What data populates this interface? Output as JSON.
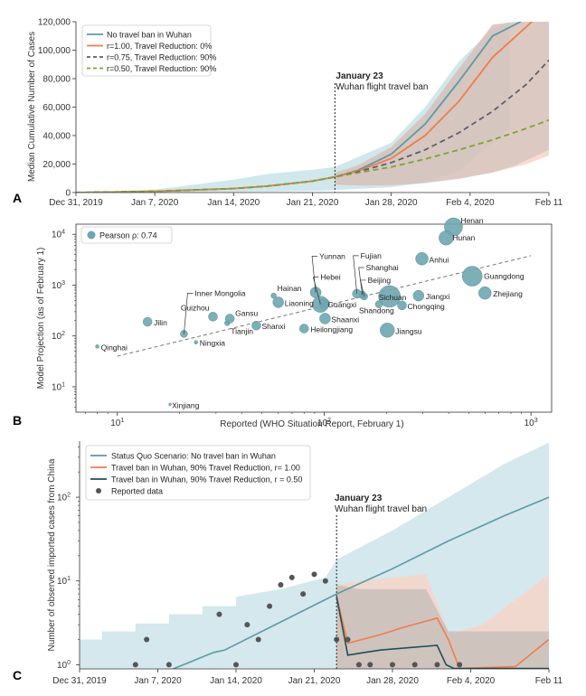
{
  "chart_data": [
    {
      "panel": "A",
      "type": "line",
      "ylabel": "Median Cumulative Number of Cases",
      "ylim": [
        0,
        120000
      ],
      "yticks": [
        0,
        20000,
        40000,
        60000,
        80000,
        100000,
        120000
      ],
      "ytick_labels": [
        "0",
        "20,000",
        "40,000",
        "60,000",
        "80,000",
        "100,000",
        "120,000"
      ],
      "x_day_range": [
        0,
        42
      ],
      "xticks": [
        0,
        7,
        14,
        21,
        28,
        35,
        42
      ],
      "xtick_labels": [
        "Dec 31, 2019",
        "Jan 7, 2020",
        "Jan 14, 2020",
        "Jan 21, 2020",
        "Jan 28, 2020",
        "Feb 4, 2020",
        "Feb 11"
      ],
      "annotation": {
        "day": 23,
        "line1": "January 23",
        "line2": "Wuhan flight travel ban"
      },
      "legend": [
        "No travel ban in Wuhan",
        "r=1.00, Travel Reduction: 0%",
        "r=0.75, Travel Reduction: 90%",
        "r=0.50, Travel Reduction: 90%"
      ],
      "series": [
        {
          "name": "No travel ban in Wuhan",
          "color": "#5b9aa5",
          "dash": "none",
          "x": [
            0,
            7,
            14,
            17,
            21,
            23,
            25,
            28,
            31,
            34,
            37,
            39.5
          ],
          "values": [
            0,
            800,
            2800,
            4500,
            8000,
            11000,
            15500,
            27000,
            48000,
            78000,
            110000,
            120000
          ]
        },
        {
          "name": "r=1.00, Travel Reduction: 0%",
          "color": "#ee7d4d",
          "dash": "none",
          "x": [
            0,
            7,
            14,
            17,
            21,
            23,
            25,
            28,
            31,
            34,
            37,
            40.5
          ],
          "values": [
            0,
            800,
            2800,
            4500,
            8000,
            11000,
            15000,
            24000,
            40000,
            64000,
            95000,
            120000
          ]
        },
        {
          "name": "r=0.75, Travel Reduction: 90%",
          "color": "#5e5e6e",
          "dash": "6,4",
          "x": [
            0,
            7,
            14,
            17,
            21,
            23,
            25,
            28,
            31,
            34,
            37,
            40,
            42
          ],
          "values": [
            0,
            800,
            2800,
            4500,
            8000,
            11000,
            14500,
            21000,
            30000,
            42000,
            57000,
            76000,
            93000
          ]
        },
        {
          "name": "r=0.50, Travel Reduction: 90%",
          "color": "#7aa632",
          "dash": "6,4",
          "x": [
            0,
            7,
            14,
            17,
            21,
            23,
            25,
            28,
            31,
            34,
            37,
            40,
            42
          ],
          "values": [
            0,
            800,
            2800,
            4500,
            8000,
            11000,
            13800,
            18000,
            23500,
            30000,
            37000,
            45000,
            51000
          ]
        }
      ],
      "bands": [
        {
          "color": "#a9d3dd",
          "x": [
            0,
            7,
            14,
            17,
            21,
            23,
            28,
            31,
            34,
            37,
            38.5
          ],
          "low": [
            0,
            100,
            400,
            700,
            1200,
            1800,
            3800,
            7000,
            15000,
            35000,
            45000
          ],
          "high": [
            0,
            2000,
            9000,
            13000,
            16000,
            18000,
            35000,
            60000,
            92000,
            115000,
            120000
          ]
        },
        {
          "color": "#f8c2ad",
          "x": [
            23,
            25,
            28,
            31,
            34,
            37,
            40,
            42
          ],
          "low": [
            5500,
            5000,
            5500,
            7000,
            10000,
            14000,
            20000,
            26000
          ],
          "high": [
            14000,
            19000,
            32000,
            55000,
            87000,
            118000,
            120000,
            120000
          ]
        },
        {
          "color": "#c8c0ba",
          "x": [
            23,
            25,
            28,
            31,
            34,
            37,
            39,
            42
          ],
          "low": [
            5500,
            5000,
            5000,
            6500,
            9500,
            14000,
            19000,
            30000
          ],
          "high": [
            14000,
            19000,
            32000,
            55000,
            87000,
            118000,
            120000,
            120000
          ]
        }
      ]
    },
    {
      "panel": "B",
      "type": "scatter",
      "xlabel": "Reported (WHO Situation Report, February 1)",
      "ylabel": "Model Projection (as of February 1)",
      "x_log_range": [
        0.8,
        3.1
      ],
      "y_log_range": [
        0.5,
        4.2
      ],
      "xtick_decades": [
        1,
        2,
        3
      ],
      "ytick_decades": [
        1,
        2,
        3,
        4
      ],
      "legend": "Pearson ρ: 0.74",
      "trend": {
        "x": [
          10,
          1000
        ],
        "y": [
          40,
          3800
        ]
      },
      "points": [
        {
          "label": "Henan",
          "x": 422,
          "y": 14000,
          "r": 10
        },
        {
          "label": "Hunan",
          "x": 389,
          "y": 8500,
          "r": 8
        },
        {
          "label": "Anhui",
          "x": 297,
          "y": 3300,
          "r": 7
        },
        {
          "label": "Guangdong",
          "x": 520,
          "y": 1500,
          "r": 11
        },
        {
          "label": "Zhejiang",
          "x": 599,
          "y": 700,
          "r": 7
        },
        {
          "label": "Jiangxi",
          "x": 286,
          "y": 620,
          "r": 6
        },
        {
          "label": "Sichuan",
          "x": 207,
          "y": 600,
          "r": 12
        },
        {
          "label": "Chongqing",
          "x": 238,
          "y": 400,
          "r": 5
        },
        {
          "label": "Shandong",
          "x": 184,
          "y": 420,
          "r": 4
        },
        {
          "label": "Jiangsu",
          "x": 202,
          "y": 130,
          "r": 8
        },
        {
          "label": "Beijing",
          "x": 156,
          "y": 600,
          "r": 4
        },
        {
          "label": "Shanghai",
          "x": 153,
          "y": 650,
          "r": 4
        },
        {
          "label": "Fujian",
          "x": 144,
          "y": 680,
          "r": 5
        },
        {
          "label": "Guangxi",
          "x": 100,
          "y": 430,
          "r": 6
        },
        {
          "label": "Yunnan",
          "x": 91,
          "y": 720,
          "r": 6
        },
        {
          "label": "Hebei",
          "x": 96,
          "y": 420,
          "r": 9
        },
        {
          "label": "Shaanxi",
          "x": 101,
          "y": 220,
          "r": 6
        },
        {
          "label": "Heilongjiang",
          "x": 80,
          "y": 140,
          "r": 5
        },
        {
          "label": "Hainan",
          "x": 57,
          "y": 620,
          "r": 3
        },
        {
          "label": "Liaoning",
          "x": 60,
          "y": 460,
          "r": 6
        },
        {
          "label": "Shanxi",
          "x": 47,
          "y": 160,
          "r": 5
        },
        {
          "label": "Tianjin",
          "x": 34,
          "y": 180,
          "r": 3
        },
        {
          "label": "Gansu",
          "x": 35,
          "y": 220,
          "r": 5
        },
        {
          "label": "Guizhou",
          "x": 29,
          "y": 240,
          "r": 5
        },
        {
          "label": "Inner Mongolia",
          "x": 21,
          "y": 110,
          "r": 4
        },
        {
          "label": "Ningxia",
          "x": 24,
          "y": 75,
          "r": 2
        },
        {
          "label": "Jilin",
          "x": 14,
          "y": 190,
          "r": 5
        },
        {
          "label": "Qinghai",
          "x": 8,
          "y": 62,
          "r": 2
        },
        {
          "label": "Xinjiang",
          "x": 18,
          "y": 4.5,
          "r": 1.5
        }
      ]
    },
    {
      "panel": "C",
      "type": "line",
      "ylabel": "Number of observed imported cases from China",
      "y_log_range": [
        -0.05,
        2.67
      ],
      "ytick_decades": [
        0,
        1,
        2
      ],
      "x_day_range": [
        0,
        42
      ],
      "xticks": [
        0,
        7,
        14,
        21,
        28,
        35,
        42
      ],
      "xtick_labels": [
        "Dec 31, 2019",
        "Jan 7, 2020",
        "Jan 14, 2020",
        "Jan 21, 2020",
        "Jan 28, 2020",
        "Feb 4, 2020",
        "Feb 11"
      ],
      "annotation": {
        "day": 23,
        "line1": "January 23",
        "line2": "Wuhan flight travel ban"
      },
      "legend": [
        "Status Quo Scenario: No travel ban in Wuhan",
        "Travel ban in Wuhan, 90% Travel Reduction, r= 1.00",
        "Travel ban in Wuhan, 90% Travel Reduction, r = 0.50",
        "Reported data"
      ],
      "series": [
        {
          "name": "Status Quo Scenario: No travel ban in Wuhan",
          "color": "#5b9aa5",
          "x": [
            8,
            12,
            13,
            23,
            28,
            33,
            38,
            42
          ],
          "values": [
            0.85,
            1.4,
            1.5,
            7,
            14,
            30,
            60,
            100
          ]
        },
        {
          "name": "Travel ban in Wuhan, 90% Travel Reduction, r= 1.00",
          "color": "#ee7d4d",
          "x": [
            23,
            24,
            27,
            29,
            32,
            33,
            34,
            39,
            42
          ],
          "values": [
            6.5,
            1.8,
            2.3,
            2.8,
            3.6,
            2.0,
            0.9,
            0.95,
            2.0
          ]
        },
        {
          "name": "Travel ban in Wuhan, 90% Travel Reduction, r = 0.50",
          "color": "#1f4e59",
          "x": [
            23,
            24,
            25.5,
            27,
            32,
            32.8,
            33.5,
            42
          ],
          "values": [
            6.5,
            1.3,
            1.4,
            1.5,
            1.7,
            1.0,
            0.9,
            0.9
          ]
        }
      ],
      "reported_data": {
        "x": [
          5,
          6,
          8,
          12.5,
          14,
          15,
          16,
          17,
          18,
          19,
          20,
          21,
          22,
          23,
          24,
          25,
          26,
          28,
          30,
          32,
          34
        ],
        "values": [
          1,
          2,
          1,
          4,
          1,
          3,
          2,
          5,
          9,
          11,
          7,
          12,
          10,
          2,
          2,
          1,
          1,
          1,
          1,
          1,
          1
        ]
      },
      "bands": [
        {
          "color": "#cfe6ec",
          "x": [
            0,
            2,
            2,
            5,
            5,
            8,
            8,
            11,
            11,
            14,
            14,
            18,
            22,
            23,
            28,
            33,
            38,
            42
          ],
          "low": [
            0.9,
            0.9,
            0.9,
            0.9,
            0.9,
            0.9,
            0.9,
            0.9,
            0.9,
            0.9,
            0.9,
            0.9,
            0.9,
            0.9,
            0.9,
            0.9,
            0.9,
            0.9
          ],
          "high": [
            2,
            2,
            2.5,
            2.5,
            3.1,
            3.1,
            4,
            4,
            5,
            5,
            6.5,
            8,
            11,
            18,
            40,
            100,
            250,
            450
          ]
        },
        {
          "color": "#fbd3c4",
          "x": [
            23,
            25,
            28,
            31,
            33,
            34,
            36,
            42
          ],
          "low": [
            0.9,
            0.9,
            0.9,
            0.9,
            0.9,
            0.9,
            0.9,
            0.9
          ],
          "high": [
            9,
            10,
            11,
            12,
            2.5,
            2.5,
            3,
            12
          ]
        },
        {
          "color": "#c3bdb7",
          "x": [
            23,
            25,
            28,
            31,
            33,
            34,
            42
          ],
          "low": [
            0.9,
            0.9,
            0.9,
            0.9,
            0.9,
            0.9,
            0.9
          ],
          "high": [
            9,
            8,
            8,
            8,
            2.5,
            2.5,
            2.5
          ]
        }
      ]
    }
  ]
}
